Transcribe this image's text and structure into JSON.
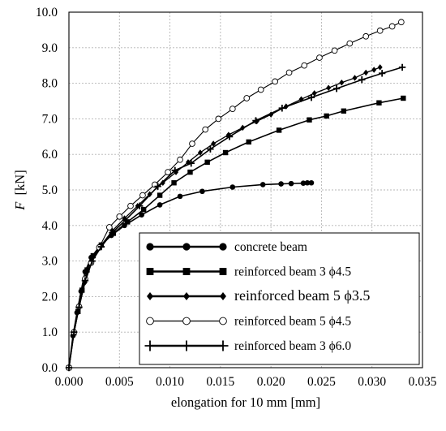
{
  "chart_data": {
    "type": "line",
    "title": "",
    "xlabel": "elongation for 10 mm [mm]",
    "ylabel_symbol": "F",
    "ylabel_unit": "[kN]",
    "xlim": [
      0.0,
      0.035
    ],
    "ylim": [
      0.0,
      10.0
    ],
    "xticks": [
      "0.000",
      "0.005",
      "0.010",
      "0.015",
      "0.020",
      "0.025",
      "0.030",
      "0.035"
    ],
    "yticks": [
      "0.0",
      "1.0",
      "2.0",
      "3.0",
      "4.0",
      "5.0",
      "6.0",
      "7.0",
      "8.0",
      "9.0",
      "10.0"
    ],
    "grid": true,
    "legend_position": "bottom-right",
    "series": [
      {
        "name": "concrete beam",
        "marker": "filled-circle",
        "large_label": false,
        "x": [
          0.0,
          0.0004,
          0.0008,
          0.0012,
          0.0016,
          0.0022,
          0.003,
          0.0042,
          0.0055,
          0.0072,
          0.009,
          0.011,
          0.0132,
          0.0162,
          0.0192,
          0.021,
          0.022,
          0.0232,
          0.0236,
          0.024
        ],
        "y": [
          0.0,
          0.9,
          1.55,
          2.15,
          2.7,
          3.1,
          3.4,
          3.72,
          4.0,
          4.3,
          4.58,
          4.82,
          4.96,
          5.08,
          5.15,
          5.17,
          5.18,
          5.19,
          5.2,
          5.2
        ]
      },
      {
        "name": "reinforced beam 3 ϕ4.5",
        "marker": "filled-square",
        "large_label": false,
        "x": [
          0.0,
          0.0005,
          0.0009,
          0.0013,
          0.0018,
          0.0024,
          0.0032,
          0.0044,
          0.0058,
          0.0074,
          0.009,
          0.0104,
          0.012,
          0.0137,
          0.0155,
          0.0178,
          0.0208,
          0.0238,
          0.0255,
          0.0272,
          0.0307,
          0.0331
        ],
        "y": [
          0.0,
          0.98,
          1.58,
          2.18,
          2.75,
          3.15,
          3.45,
          3.78,
          4.1,
          4.45,
          4.85,
          5.2,
          5.5,
          5.78,
          6.05,
          6.35,
          6.68,
          6.97,
          7.08,
          7.22,
          7.45,
          7.58
        ]
      },
      {
        "name": "reinforced beam 5 ϕ3.5",
        "marker": "filled-diamond",
        "large_label": true,
        "x": [
          0.0,
          0.0005,
          0.001,
          0.0016,
          0.0023,
          0.0032,
          0.0043,
          0.0055,
          0.0068,
          0.008,
          0.0093,
          0.0106,
          0.0118,
          0.013,
          0.0143,
          0.0158,
          0.0172,
          0.0186,
          0.02,
          0.0215,
          0.023,
          0.0243,
          0.0257,
          0.027,
          0.0283,
          0.0294,
          0.0302,
          0.0308
        ],
        "y": [
          0.0,
          1.0,
          1.7,
          2.4,
          3.0,
          3.45,
          3.85,
          4.2,
          4.55,
          4.88,
          5.2,
          5.5,
          5.78,
          6.05,
          6.3,
          6.55,
          6.75,
          6.93,
          7.12,
          7.35,
          7.55,
          7.72,
          7.87,
          8.02,
          8.15,
          8.3,
          8.38,
          8.45
        ]
      },
      {
        "name": "reinforced beam 5 ϕ4.5",
        "marker": "open-circle",
        "large_label": false,
        "x": [
          0.0,
          0.0005,
          0.001,
          0.0016,
          0.0022,
          0.003,
          0.004,
          0.005,
          0.0061,
          0.0073,
          0.0085,
          0.0098,
          0.011,
          0.0122,
          0.0135,
          0.0148,
          0.0162,
          0.0176,
          0.019,
          0.0204,
          0.0218,
          0.0233,
          0.0248,
          0.0263,
          0.0278,
          0.0294,
          0.0308,
          0.032,
          0.0329
        ],
        "y": [
          0.0,
          1.0,
          1.72,
          2.5,
          2.95,
          3.38,
          3.95,
          4.25,
          4.55,
          4.85,
          5.15,
          5.5,
          5.85,
          6.3,
          6.7,
          7.0,
          7.28,
          7.58,
          7.82,
          8.05,
          8.3,
          8.5,
          8.72,
          8.92,
          9.12,
          9.32,
          9.48,
          9.6,
          9.72
        ]
      },
      {
        "name": "reinforced beam 3 ϕ6.0",
        "marker": "plus",
        "large_label": false,
        "x": [
          0.0,
          0.0005,
          0.001,
          0.0016,
          0.0023,
          0.0032,
          0.0043,
          0.0056,
          0.007,
          0.0088,
          0.0105,
          0.0121,
          0.014,
          0.0159,
          0.0185,
          0.0211,
          0.024,
          0.0265,
          0.029,
          0.031,
          0.033
        ],
        "y": [
          0.0,
          1.0,
          1.7,
          2.45,
          3.0,
          3.4,
          3.8,
          4.15,
          4.55,
          5.1,
          5.55,
          5.75,
          6.15,
          6.5,
          6.95,
          7.3,
          7.6,
          7.85,
          8.1,
          8.28,
          8.45
        ]
      }
    ]
  }
}
